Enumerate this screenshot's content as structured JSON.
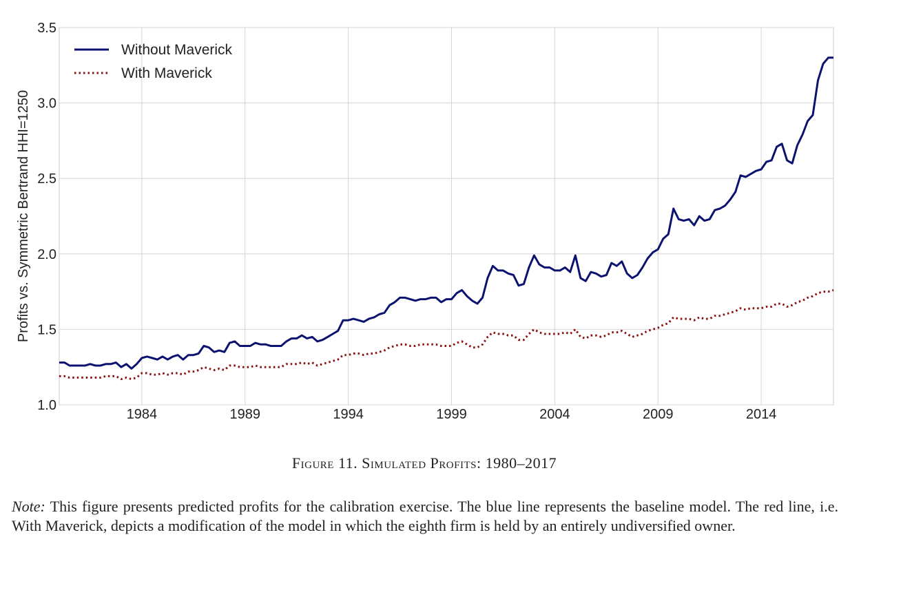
{
  "chart_data": {
    "type": "line",
    "ylabel": "Profits vs. Symmetric Bertrand HHI=1250",
    "xlabel": "",
    "xlim": [
      1980,
      2017.5
    ],
    "ylim": [
      1.0,
      3.5
    ],
    "xticks": [
      1984,
      1989,
      1994,
      1999,
      2004,
      2009,
      2014
    ],
    "yticks": [
      "1.0",
      "1.5",
      "2.0",
      "2.5",
      "3.0",
      "3.5"
    ],
    "grid": true,
    "legend_position": "top-left",
    "x": [
      1980.0,
      1980.25,
      1980.5,
      1980.75,
      1981.0,
      1981.25,
      1981.5,
      1981.75,
      1982.0,
      1982.25,
      1982.5,
      1982.75,
      1983.0,
      1983.25,
      1983.5,
      1983.75,
      1984.0,
      1984.25,
      1984.5,
      1984.75,
      1985.0,
      1985.25,
      1985.5,
      1985.75,
      1986.0,
      1986.25,
      1986.5,
      1986.75,
      1987.0,
      1987.25,
      1987.5,
      1987.75,
      1988.0,
      1988.25,
      1988.5,
      1988.75,
      1989.0,
      1989.25,
      1989.5,
      1989.75,
      1990.0,
      1990.25,
      1990.5,
      1990.75,
      1991.0,
      1991.25,
      1991.5,
      1991.75,
      1992.0,
      1992.25,
      1992.5,
      1992.75,
      1993.0,
      1993.25,
      1993.5,
      1993.75,
      1994.0,
      1994.25,
      1994.5,
      1994.75,
      1995.0,
      1995.25,
      1995.5,
      1995.75,
      1996.0,
      1996.25,
      1996.5,
      1996.75,
      1997.0,
      1997.25,
      1997.5,
      1997.75,
      1998.0,
      1998.25,
      1998.5,
      1998.75,
      1999.0,
      1999.25,
      1999.5,
      1999.75,
      2000.0,
      2000.25,
      2000.5,
      2000.75,
      2001.0,
      2001.25,
      2001.5,
      2001.75,
      2002.0,
      2002.25,
      2002.5,
      2002.75,
      2003.0,
      2003.25,
      2003.5,
      2003.75,
      2004.0,
      2004.25,
      2004.5,
      2004.75,
      2005.0,
      2005.25,
      2005.5,
      2005.75,
      2006.0,
      2006.25,
      2006.5,
      2006.75,
      2007.0,
      2007.25,
      2007.5,
      2007.75,
      2008.0,
      2008.25,
      2008.5,
      2008.75,
      2009.0,
      2009.25,
      2009.5,
      2009.75,
      2010.0,
      2010.25,
      2010.5,
      2010.75,
      2011.0,
      2011.25,
      2011.5,
      2011.75,
      2012.0,
      2012.25,
      2012.5,
      2012.75,
      2013.0,
      2013.25,
      2013.5,
      2013.75,
      2014.0,
      2014.25,
      2014.5,
      2014.75,
      2015.0,
      2015.25,
      2015.5,
      2015.75,
      2016.0,
      2016.25,
      2016.5,
      2016.75,
      2017.0,
      2017.25,
      2017.5
    ],
    "series": [
      {
        "name": "Without Maverick",
        "color": "#0b1270",
        "style": "solid",
        "values": [
          1.28,
          1.28,
          1.26,
          1.26,
          1.26,
          1.26,
          1.27,
          1.26,
          1.26,
          1.27,
          1.27,
          1.28,
          1.25,
          1.27,
          1.24,
          1.27,
          1.31,
          1.32,
          1.31,
          1.3,
          1.32,
          1.3,
          1.32,
          1.33,
          1.3,
          1.33,
          1.33,
          1.34,
          1.39,
          1.38,
          1.35,
          1.36,
          1.35,
          1.41,
          1.42,
          1.39,
          1.39,
          1.39,
          1.41,
          1.4,
          1.4,
          1.39,
          1.39,
          1.39,
          1.42,
          1.44,
          1.44,
          1.46,
          1.44,
          1.45,
          1.42,
          1.43,
          1.45,
          1.47,
          1.49,
          1.56,
          1.56,
          1.57,
          1.56,
          1.55,
          1.57,
          1.58,
          1.6,
          1.61,
          1.66,
          1.68,
          1.71,
          1.71,
          1.7,
          1.69,
          1.7,
          1.7,
          1.71,
          1.71,
          1.68,
          1.7,
          1.7,
          1.74,
          1.76,
          1.72,
          1.69,
          1.67,
          1.71,
          1.84,
          1.92,
          1.89,
          1.89,
          1.87,
          1.86,
          1.79,
          1.8,
          1.91,
          1.99,
          1.93,
          1.91,
          1.91,
          1.89,
          1.89,
          1.91,
          1.88,
          1.99,
          1.84,
          1.82,
          1.88,
          1.87,
          1.85,
          1.86,
          1.94,
          1.92,
          1.95,
          1.87,
          1.84,
          1.86,
          1.91,
          1.97,
          2.01,
          2.03,
          2.1,
          2.13,
          2.3,
          2.23,
          2.22,
          2.23,
          2.19,
          2.25,
          2.22,
          2.23,
          2.29,
          2.3,
          2.32,
          2.36,
          2.41,
          2.52,
          2.51,
          2.53,
          2.55,
          2.56,
          2.61,
          2.62,
          2.71,
          2.73,
          2.62,
          2.6,
          2.72,
          2.79,
          2.88,
          2.92,
          3.15,
          3.26,
          3.3,
          3.3
        ]
      },
      {
        "name": "With Maverick",
        "color": "#8b1010",
        "style": "dotted",
        "values": [
          1.19,
          1.19,
          1.18,
          1.18,
          1.18,
          1.18,
          1.18,
          1.18,
          1.18,
          1.19,
          1.19,
          1.19,
          1.17,
          1.18,
          1.17,
          1.18,
          1.21,
          1.21,
          1.2,
          1.2,
          1.21,
          1.2,
          1.21,
          1.21,
          1.2,
          1.22,
          1.22,
          1.23,
          1.25,
          1.24,
          1.23,
          1.24,
          1.23,
          1.26,
          1.26,
          1.25,
          1.25,
          1.25,
          1.26,
          1.25,
          1.25,
          1.25,
          1.25,
          1.25,
          1.27,
          1.27,
          1.27,
          1.28,
          1.27,
          1.28,
          1.26,
          1.27,
          1.28,
          1.29,
          1.3,
          1.33,
          1.33,
          1.34,
          1.34,
          1.33,
          1.34,
          1.34,
          1.35,
          1.36,
          1.38,
          1.39,
          1.4,
          1.4,
          1.39,
          1.39,
          1.4,
          1.4,
          1.4,
          1.4,
          1.39,
          1.39,
          1.39,
          1.41,
          1.42,
          1.4,
          1.38,
          1.38,
          1.4,
          1.45,
          1.48,
          1.47,
          1.47,
          1.46,
          1.46,
          1.43,
          1.43,
          1.47,
          1.5,
          1.48,
          1.47,
          1.47,
          1.47,
          1.47,
          1.48,
          1.47,
          1.5,
          1.45,
          1.44,
          1.46,
          1.46,
          1.45,
          1.46,
          1.48,
          1.48,
          1.49,
          1.47,
          1.45,
          1.46,
          1.47,
          1.49,
          1.5,
          1.51,
          1.53,
          1.54,
          1.58,
          1.57,
          1.57,
          1.57,
          1.56,
          1.58,
          1.57,
          1.57,
          1.59,
          1.59,
          1.6,
          1.61,
          1.62,
          1.64,
          1.63,
          1.64,
          1.64,
          1.64,
          1.65,
          1.65,
          1.67,
          1.67,
          1.65,
          1.66,
          1.68,
          1.69,
          1.71,
          1.72,
          1.74,
          1.75,
          1.75,
          1.76
        ]
      }
    ]
  },
  "caption": "Figure 11. Simulated Profits: 1980–2017",
  "note": {
    "label": "Note:",
    "text": "This figure presents predicted profits for the calibration exercise.  The blue line represents the baseline model. The red line, i.e. With Maverick, depicts a modification of the model in which the eighth firm is held by an entirely undiversified owner."
  }
}
